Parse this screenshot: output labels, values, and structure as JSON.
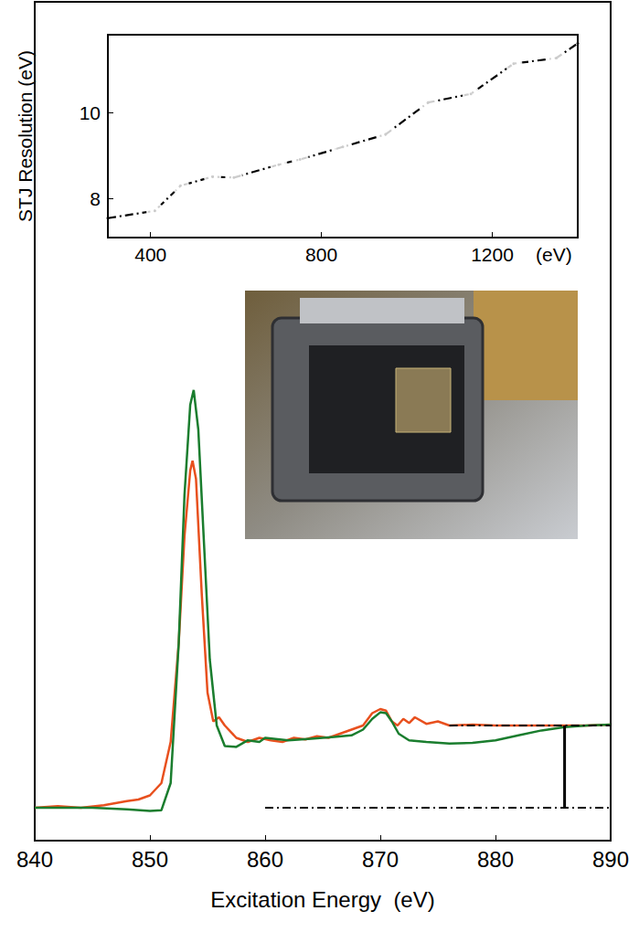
{
  "chart_data": [
    {
      "type": "line",
      "x_label": "Excitation Energy  (eV)",
      "xlim": [
        840,
        890
      ],
      "xticks": [
        840,
        850,
        860,
        870,
        880,
        890
      ],
      "ylim": [
        -0.4,
        9.8
      ],
      "tick_labels": "x",
      "grid": false,
      "series": [
        {
          "color": "#e8501e",
          "x": [
            840,
            842,
            844,
            846,
            848,
            849,
            850,
            851,
            851.8,
            852.5,
            853,
            853.5,
            853.7,
            854,
            854.5,
            855,
            855.5,
            856,
            856.5,
            857.5,
            858.5,
            859.5,
            860.5,
            861.5,
            862.5,
            863.5,
            864.5,
            865.5,
            866.5,
            867.5,
            868.5,
            869.3,
            870,
            870.5,
            871,
            871.5,
            872,
            872.5,
            873,
            874,
            875,
            876,
            878,
            880,
            884,
            888,
            890
          ],
          "values": [
            0,
            0.02,
            0,
            0.03,
            0.08,
            0.1,
            0.15,
            0.3,
            0.8,
            2.0,
            3.3,
            4.1,
            4.22,
            4.0,
            2.6,
            1.4,
            1.05,
            1.1,
            1.0,
            0.85,
            0.8,
            0.85,
            0.82,
            0.8,
            0.85,
            0.83,
            0.87,
            0.85,
            0.9,
            0.95,
            1.0,
            1.15,
            1.2,
            1.18,
            1.05,
            1.0,
            1.08,
            1.03,
            1.1,
            1.02,
            1.05,
            1.0,
            1.01,
            1.0,
            1.0,
            1.0,
            1.01
          ]
        },
        {
          "color": "#1a7d2e",
          "x": [
            840,
            845,
            848,
            850,
            851,
            851.8,
            852.5,
            853,
            853.5,
            853.8,
            854.2,
            854.7,
            855.2,
            855.8,
            856.5,
            857.5,
            858.5,
            859.5,
            860,
            862,
            864,
            866,
            867.5,
            868.5,
            869.3,
            870,
            870.5,
            871,
            871.6,
            872.5,
            874,
            876,
            878,
            880,
            882,
            884,
            886,
            888,
            890
          ],
          "values": [
            0,
            0,
            -0.02,
            -0.04,
            -0.03,
            0.3,
            2.0,
            3.8,
            4.9,
            5.08,
            4.6,
            3.2,
            1.8,
            1.0,
            0.75,
            0.74,
            0.82,
            0.8,
            0.85,
            0.82,
            0.84,
            0.86,
            0.88,
            0.95,
            1.08,
            1.16,
            1.15,
            1.05,
            0.9,
            0.82,
            0.8,
            0.78,
            0.79,
            0.82,
            0.88,
            0.94,
            0.98,
            1.0,
            1.01
          ]
        },
        {
          "color": "#000000",
          "line_style": "dashdot",
          "x": [
            876,
            890
          ],
          "values": [
            1,
            1
          ]
        },
        {
          "color": "#000000",
          "line_style": "dashdot",
          "x": [
            860,
            890
          ],
          "values": [
            0,
            0
          ]
        },
        {
          "color": "#000000",
          "line_style": "solid",
          "x": [
            886,
            886
          ],
          "values": [
            0,
            1
          ]
        }
      ]
    },
    {
      "type": "scatter",
      "y_label": "STJ Resolution (eV)",
      "x_label": "(eV)",
      "xlim": [
        300,
        1400
      ],
      "xticks": [
        400,
        800,
        1200
      ],
      "ylim": [
        7.1,
        11.8
      ],
      "yticks": [
        8,
        10
      ],
      "series": [
        {
          "type": "line",
          "line_style": "dashdot",
          "color": "#000000",
          "x": [
            300,
            410,
            470,
            545,
            595,
            700,
            750,
            850,
            950,
            1050,
            1150,
            1250,
            1350,
            1400
          ],
          "values": [
            7.55,
            7.72,
            8.3,
            8.51,
            8.49,
            8.79,
            8.91,
            9.2,
            9.49,
            10.23,
            10.43,
            11.13,
            11.26,
            11.6
          ]
        },
        {
          "type": "scatter",
          "marker": "circle",
          "color": "#555555",
          "x": [
            410,
            470,
            545,
            595,
            700,
            750,
            850,
            950,
            1050,
            1150,
            1250,
            1350
          ],
          "values": [
            7.72,
            8.3,
            8.51,
            8.49,
            8.79,
            8.91,
            9.2,
            9.49,
            10.23,
            10.43,
            11.13,
            11.26
          ]
        }
      ]
    }
  ]
}
